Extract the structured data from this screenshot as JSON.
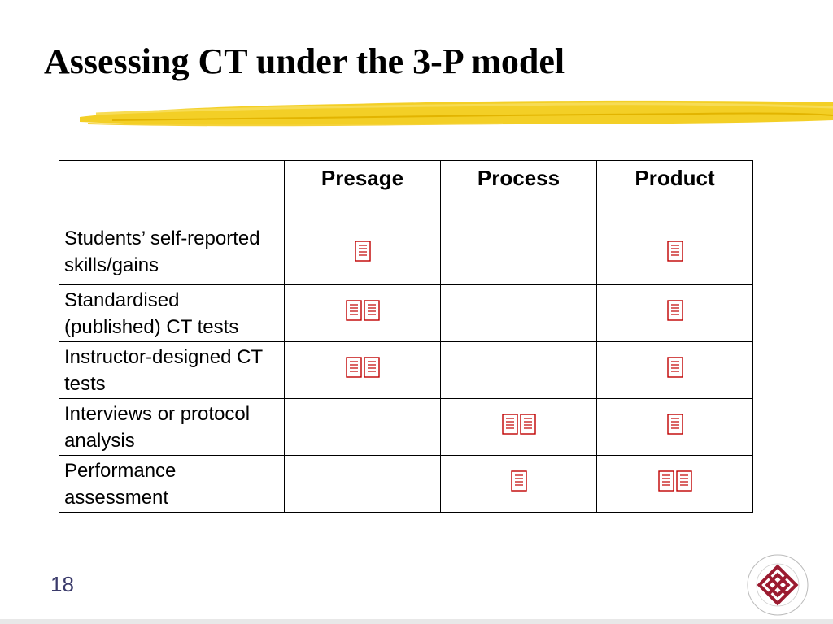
{
  "slide": {
    "title": "Assessing CT under the 3-P model",
    "page_number": "18"
  },
  "colors": {
    "brush": "#f2cc1a",
    "mark": "#c00000",
    "logo": "#9b1b30"
  },
  "table": {
    "columns": [
      "",
      "Presage",
      "Process",
      "Product"
    ],
    "rows": [
      {
        "label": "Students’ self-reported skills/gains",
        "presage": 1,
        "process": 0,
        "product": 1
      },
      {
        "label": "Standardised (published) CT tests",
        "presage": 2,
        "process": 0,
        "product": 1
      },
      {
        "label": "Instructor-designed CT tests",
        "presage": 2,
        "process": 0,
        "product": 1
      },
      {
        "label": "Interviews or protocol analysis",
        "presage": 0,
        "process": 2,
        "product": 1
      },
      {
        "label": "Performance assessment",
        "presage": 0,
        "process": 1,
        "product": 2
      }
    ]
  },
  "icons": {
    "mark": "checkmark-glyph-icon",
    "logo": "university-seal-icon",
    "brush": "yellow-brush-stroke"
  }
}
